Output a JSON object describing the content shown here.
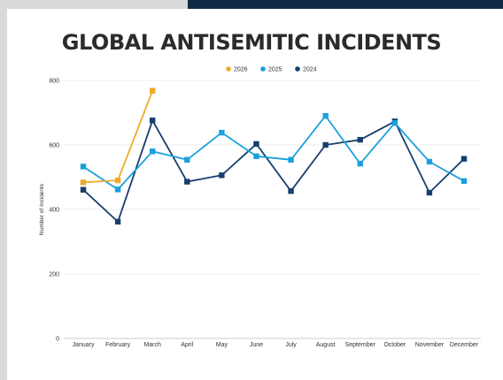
{
  "chart_data": {
    "type": "line",
    "title": "GLOBAL ANTISEMITIC INCIDENTS",
    "xlabel": "",
    "ylabel": "Number of Incidents",
    "ylim": [
      0,
      800
    ],
    "yticks": [
      0,
      200,
      400,
      600,
      800
    ],
    "grid": true,
    "legend_position": "top-center",
    "categories": [
      "January",
      "February",
      "March",
      "April",
      "May",
      "June",
      "July",
      "August",
      "September",
      "October",
      "November",
      "December"
    ],
    "series": [
      {
        "name": "2026",
        "color": "#f0a92a",
        "marker": "square",
        "values": [
          484,
          490,
          768,
          null,
          null,
          null,
          null,
          null,
          null,
          null,
          null,
          null
        ]
      },
      {
        "name": "2025",
        "color": "#1aa0dc",
        "marker": "square",
        "values": [
          533,
          462,
          580,
          554,
          638,
          565,
          554,
          690,
          542,
          668,
          548,
          488
        ]
      },
      {
        "name": "2024",
        "color": "#163f6e",
        "marker": "square",
        "values": [
          461,
          362,
          676,
          486,
          506,
          603,
          457,
          600,
          616,
          673,
          452,
          557
        ]
      }
    ]
  }
}
